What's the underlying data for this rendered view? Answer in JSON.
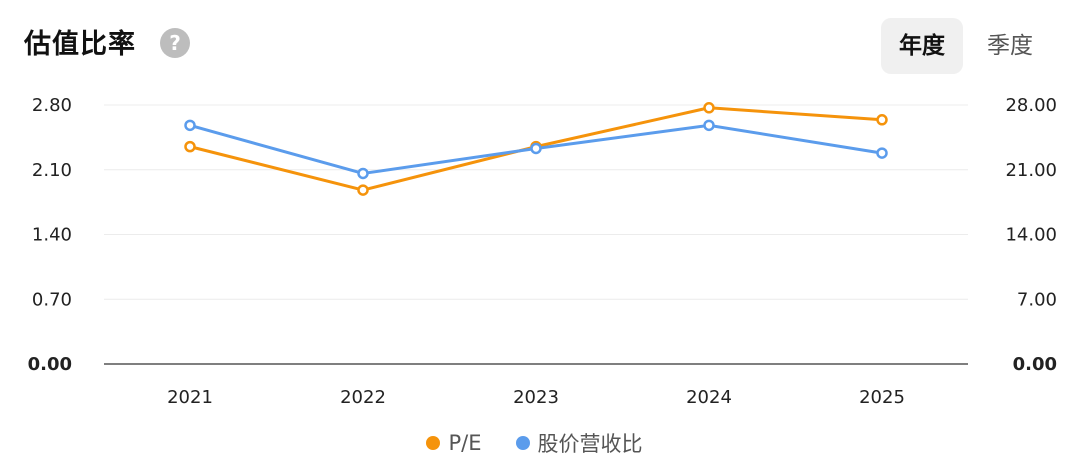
{
  "header": {
    "title": "估值比率",
    "help_icon": "question-icon",
    "help_glyph": "?"
  },
  "tabs": [
    {
      "label": "年度",
      "active": true
    },
    {
      "label": "季度",
      "active": false
    }
  ],
  "colors": {
    "pe": "#f5930b",
    "ps": "#5b9cec",
    "grid": "#ececec",
    "axis": "#555555"
  },
  "chart_data": {
    "type": "line",
    "categories": [
      "2021",
      "2022",
      "2023",
      "2024",
      "2025"
    ],
    "series": [
      {
        "name": "P/E",
        "axis": "left",
        "color": "#f5930b",
        "values": [
          2.35,
          1.88,
          2.35,
          2.77,
          2.64
        ]
      },
      {
        "name": "股价营收比",
        "axis": "right",
        "color": "#5b9cec",
        "values": [
          25.8,
          20.6,
          23.3,
          25.8,
          22.8
        ]
      }
    ],
    "y_left": {
      "ticks": [
        "0.00",
        "0.70",
        "1.40",
        "2.10",
        "2.80"
      ],
      "ylim": [
        0,
        2.8
      ]
    },
    "y_right": {
      "ticks": [
        "0.00",
        "7.00",
        "14.00",
        "21.00",
        "28.00"
      ],
      "ylim": [
        0,
        28
      ]
    },
    "grid": true,
    "legend_position": "bottom-center"
  }
}
